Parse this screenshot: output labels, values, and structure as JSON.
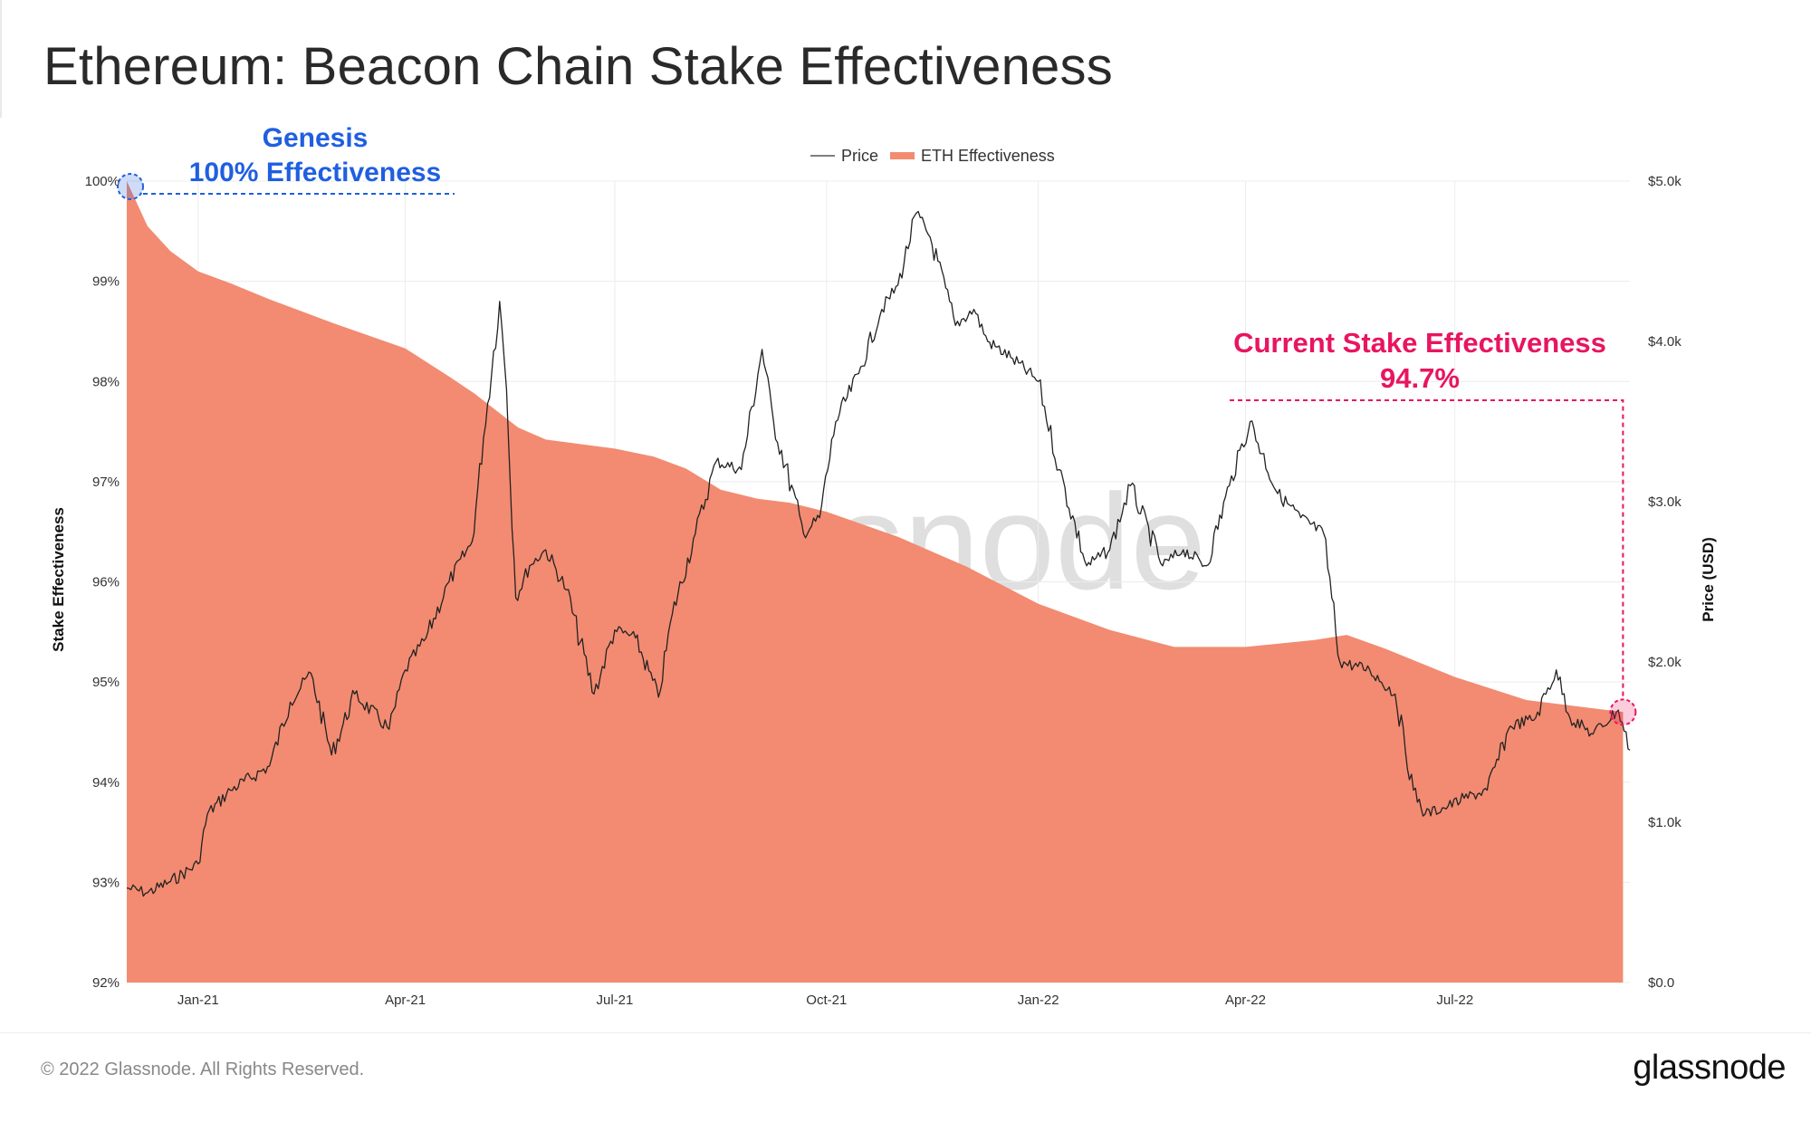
{
  "title": "Ethereum: Beacon Chain Stake Effectiveness",
  "footer": {
    "copyright": "© 2022 Glassnode. All Rights Reserved.",
    "brand": "glassnode"
  },
  "watermark": "glassnode",
  "colors": {
    "area": "#f28b71",
    "price_line": "#222222",
    "grid": "#ececec",
    "genesis": "#1f5fe0",
    "current": "#e8155f"
  },
  "chart_data": {
    "type": "area",
    "legend": {
      "placement": "top-center",
      "items": [
        {
          "label": "Price"
        },
        {
          "label": "ETH Effectiveness"
        }
      ]
    },
    "x_range": [
      "2020-12-01",
      "2022-09-15"
    ],
    "x_ticks": [
      {
        "label": "Jan-21",
        "date": "2021-01-01"
      },
      {
        "label": "Apr-21",
        "date": "2021-04-01"
      },
      {
        "label": "Jul-21",
        "date": "2021-07-01"
      },
      {
        "label": "Oct-21",
        "date": "2021-10-01"
      },
      {
        "label": "Jan-22",
        "date": "2022-01-01"
      },
      {
        "label": "Apr-22",
        "date": "2022-04-01"
      },
      {
        "label": "Jul-22",
        "date": "2022-07-01"
      }
    ],
    "y_left": {
      "label": "Stake Effectiveness",
      "range": [
        92,
        100
      ],
      "ticks": [
        "92%",
        "93%",
        "94%",
        "95%",
        "96%",
        "97%",
        "98%",
        "99%",
        "100%"
      ]
    },
    "y_right": {
      "label": "Price (USD)",
      "range": [
        0,
        5000
      ],
      "ticks": [
        "$0.0",
        "$1.0k",
        "$2.0k",
        "$3.0k",
        "$4.0k",
        "$5.0k"
      ]
    },
    "grid": true,
    "series": [
      {
        "name": "ETH Effectiveness",
        "axis": "left",
        "kind": "area",
        "points": [
          [
            "2020-12-01",
            100.0
          ],
          [
            "2020-12-10",
            99.55
          ],
          [
            "2020-12-20",
            99.3
          ],
          [
            "2021-01-01",
            99.1
          ],
          [
            "2021-01-15",
            98.98
          ],
          [
            "2021-02-01",
            98.82
          ],
          [
            "2021-03-01",
            98.58
          ],
          [
            "2021-04-01",
            98.33
          ],
          [
            "2021-04-20",
            98.05
          ],
          [
            "2021-05-01",
            97.88
          ],
          [
            "2021-05-20",
            97.54
          ],
          [
            "2021-06-01",
            97.42
          ],
          [
            "2021-07-01",
            97.33
          ],
          [
            "2021-07-18",
            97.25
          ],
          [
            "2021-08-01",
            97.13
          ],
          [
            "2021-08-16",
            96.92
          ],
          [
            "2021-09-01",
            96.83
          ],
          [
            "2021-09-15",
            96.79
          ],
          [
            "2021-10-01",
            96.7
          ],
          [
            "2021-11-01",
            96.45
          ],
          [
            "2021-12-01",
            96.15
          ],
          [
            "2022-01-01",
            95.78
          ],
          [
            "2022-02-01",
            95.52
          ],
          [
            "2022-03-01",
            95.35
          ],
          [
            "2022-04-01",
            95.35
          ],
          [
            "2022-05-01",
            95.42
          ],
          [
            "2022-05-15",
            95.47
          ],
          [
            "2022-06-01",
            95.33
          ],
          [
            "2022-07-01",
            95.05
          ],
          [
            "2022-08-01",
            94.82
          ],
          [
            "2022-09-12",
            94.7
          ]
        ]
      },
      {
        "name": "Price",
        "axis": "right",
        "kind": "line",
        "points": [
          [
            "2020-12-01",
            590
          ],
          [
            "2020-12-10",
            560
          ],
          [
            "2020-12-20",
            630
          ],
          [
            "2021-01-01",
            740
          ],
          [
            "2021-01-05",
            1050
          ],
          [
            "2021-01-15",
            1200
          ],
          [
            "2021-02-01",
            1350
          ],
          [
            "2021-02-10",
            1750
          ],
          [
            "2021-02-19",
            1930
          ],
          [
            "2021-02-28",
            1420
          ],
          [
            "2021-03-10",
            1800
          ],
          [
            "2021-03-25",
            1580
          ],
          [
            "2021-04-01",
            1950
          ],
          [
            "2021-04-10",
            2150
          ],
          [
            "2021-04-20",
            2500
          ],
          [
            "2021-04-30",
            2750
          ],
          [
            "2021-05-05",
            3400
          ],
          [
            "2021-05-12",
            4250
          ],
          [
            "2021-05-15",
            3700
          ],
          [
            "2021-05-19",
            2400
          ],
          [
            "2021-05-25",
            2600
          ],
          [
            "2021-06-01",
            2700
          ],
          [
            "2021-06-10",
            2450
          ],
          [
            "2021-06-22",
            1800
          ],
          [
            "2021-07-01",
            2200
          ],
          [
            "2021-07-10",
            2150
          ],
          [
            "2021-07-20",
            1780
          ],
          [
            "2021-07-26",
            2300
          ],
          [
            "2021-08-05",
            2800
          ],
          [
            "2021-08-14",
            3250
          ],
          [
            "2021-08-25",
            3200
          ],
          [
            "2021-09-03",
            3950
          ],
          [
            "2021-09-08",
            3500
          ],
          [
            "2021-09-21",
            2800
          ],
          [
            "2021-09-28",
            2900
          ],
          [
            "2021-10-05",
            3500
          ],
          [
            "2021-10-15",
            3800
          ],
          [
            "2021-10-25",
            4200
          ],
          [
            "2021-11-01",
            4350
          ],
          [
            "2021-11-09",
            4800
          ],
          [
            "2021-11-15",
            4650
          ],
          [
            "2021-11-26",
            4100
          ],
          [
            "2021-12-04",
            4200
          ],
          [
            "2021-12-10",
            4000
          ],
          [
            "2021-12-20",
            3900
          ],
          [
            "2022-01-01",
            3750
          ],
          [
            "2022-01-10",
            3200
          ],
          [
            "2022-01-22",
            2600
          ],
          [
            "2022-02-01",
            2700
          ],
          [
            "2022-02-10",
            3100
          ],
          [
            "2022-02-24",
            2600
          ],
          [
            "2022-03-05",
            2700
          ],
          [
            "2022-03-15",
            2600
          ],
          [
            "2022-03-25",
            3100
          ],
          [
            "2022-04-03",
            3500
          ],
          [
            "2022-04-15",
            3050
          ],
          [
            "2022-04-25",
            2900
          ],
          [
            "2022-05-05",
            2800
          ],
          [
            "2022-05-12",
            2000
          ],
          [
            "2022-05-25",
            1950
          ],
          [
            "2022-06-05",
            1800
          ],
          [
            "2022-06-13",
            1200
          ],
          [
            "2022-06-18",
            1050
          ],
          [
            "2022-06-28",
            1100
          ],
          [
            "2022-07-05",
            1150
          ],
          [
            "2022-07-15",
            1200
          ],
          [
            "2022-07-25",
            1600
          ],
          [
            "2022-08-05",
            1650
          ],
          [
            "2022-08-14",
            1950
          ],
          [
            "2022-08-20",
            1650
          ],
          [
            "2022-08-30",
            1550
          ],
          [
            "2022-09-10",
            1700
          ],
          [
            "2022-09-15",
            1450
          ]
        ]
      }
    ],
    "annotations": [
      {
        "id": "genesis",
        "line1": "Genesis",
        "line2": "100% Effectiveness",
        "date": "2020-12-01",
        "value": 100
      },
      {
        "id": "current",
        "line1": "Current Stake Effectiveness",
        "line2": "94.7%",
        "date": "2022-09-12",
        "value": 94.7
      }
    ]
  }
}
